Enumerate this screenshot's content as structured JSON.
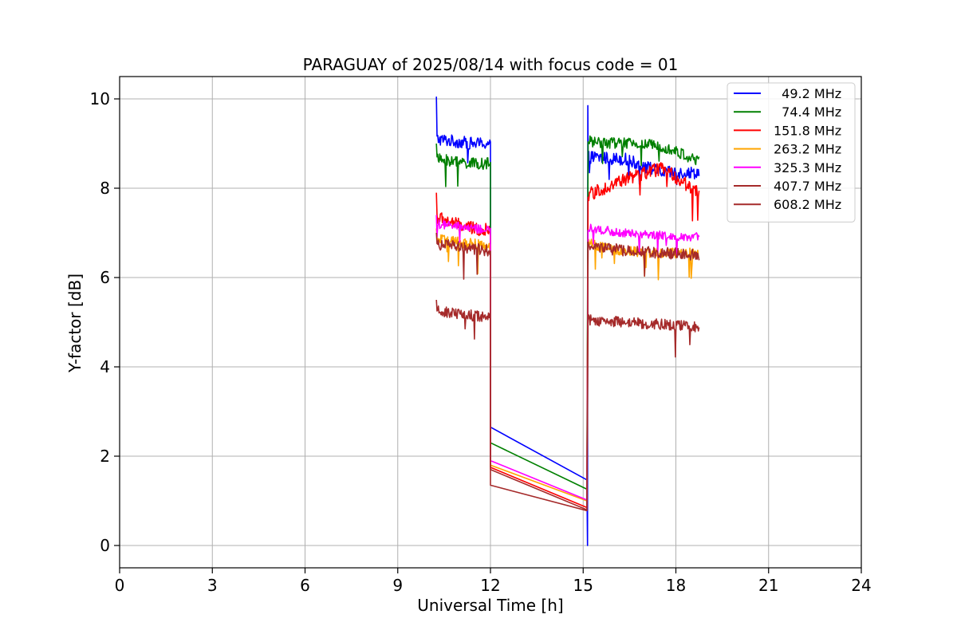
{
  "chart_data": {
    "type": "line",
    "title": "PARAGUAY of 2025/08/14 with focus code = 01",
    "xlabel": "Universal Time [h]",
    "ylabel": "Y-factor [dB]",
    "xlim": [
      0,
      24
    ],
    "ylim": [
      -0.5,
      10.5
    ],
    "xticks": [
      0,
      3,
      6,
      9,
      12,
      15,
      18,
      21,
      24
    ],
    "yticks": [
      0,
      2,
      4,
      6,
      8,
      10
    ],
    "grid": true,
    "legend_position": "top-right",
    "segment1": [
      10.25,
      12.0
    ],
    "segment2": [
      15.12,
      18.75
    ],
    "gap": [
      12.0,
      15.12
    ],
    "series": [
      {
        "name": "  49.2 MHz",
        "color": "#0000ff",
        "noise": 0.14,
        "start_spike": 10.05,
        "seg1": [
          9.1,
          9.05,
          9.0,
          9.0
        ],
        "seg2": [
          8.7,
          8.65,
          8.35,
          8.35
        ],
        "gap_values": [
          2.65,
          1.47
        ],
        "z": 0
      },
      {
        "name": "  74.4 MHz",
        "color": "#008000",
        "noise": 0.13,
        "start_spike": 9.0,
        "seg1": [
          8.65,
          8.6,
          8.55,
          8.55
        ],
        "seg2": [
          9.05,
          9.0,
          8.95,
          8.6
        ],
        "gap_values": [
          2.3,
          1.26
        ],
        "z": 1
      },
      {
        "name": "151.8 MHz",
        "color": "#ff0000",
        "noise": 0.15,
        "start_spike": 7.9,
        "seg1": [
          7.35,
          7.2,
          7.1,
          7.05
        ],
        "seg2": [
          7.85,
          8.2,
          8.45,
          7.9
        ],
        "gap_values": [
          1.75,
          0.85
        ],
        "z": 2
      },
      {
        "name": "263.2 MHz",
        "color": "#ffa500",
        "noise": 0.12,
        "start_spike": 7.1,
        "seg1": [
          6.85,
          6.8,
          6.75,
          6.7
        ],
        "seg2": [
          6.75,
          6.6,
          6.55,
          6.55
        ],
        "gap_values": [
          1.8,
          1.0
        ],
        "z": 3
      },
      {
        "name": "325.3 MHz",
        "color": "#ff00ff",
        "noise": 0.1,
        "start_spike": 7.4,
        "seg1": [
          7.2,
          7.15,
          7.1,
          7.05
        ],
        "seg2": [
          7.1,
          7.0,
          6.95,
          6.9
        ],
        "gap_values": [
          1.9,
          1.02
        ],
        "z": 4
      },
      {
        "name": "407.7 MHz",
        "color": "#a52a2a",
        "noise": 0.13,
        "start_spike": 7.0,
        "seg1": [
          6.75,
          6.7,
          6.65,
          6.6
        ],
        "seg2": [
          6.7,
          6.6,
          6.55,
          6.5
        ],
        "gap_values": [
          1.7,
          0.8
        ],
        "z": 5
      },
      {
        "name": "608.2 MHz",
        "color": "#a52a2a",
        "noise": 0.12,
        "start_spike": 5.5,
        "seg1": [
          5.25,
          5.2,
          5.15,
          5.1
        ],
        "seg2": [
          5.05,
          5.0,
          4.95,
          4.9
        ],
        "gap_values": [
          1.35,
          0.78
        ],
        "z": 6
      }
    ]
  }
}
